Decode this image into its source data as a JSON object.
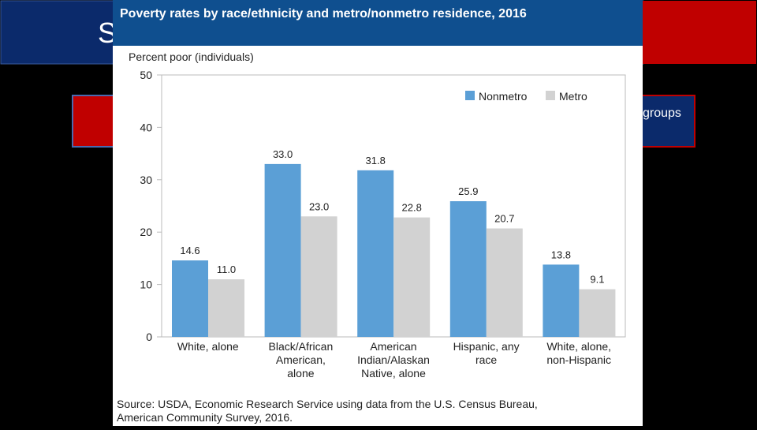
{
  "slide": {
    "title_fragment": "S",
    "box_fragment": "groups"
  },
  "chart_data": {
    "type": "bar",
    "title": "Poverty rates by race/ethnicity and metro/nonmetro residence, 2016",
    "y_label": "Percent poor (individuals)",
    "source": "Source: USDA, Economic Research Service using data from the U.S. Census Bureau, American Community Survey, 2016.",
    "categories": [
      "White, alone",
      "Black/African American, alone",
      "American Indian/Alaskan Native, alone",
      "Hispanic, any race",
      "White, alone, non-Hispanic"
    ],
    "series": [
      {
        "name": "Nonmetro",
        "color": "#5b9fd6",
        "values": [
          14.6,
          33,
          31.8,
          25.9,
          13.8
        ],
        "value_labels": [
          "14.6",
          "33.0",
          "31.8",
          "25.9",
          "13.8"
        ]
      },
      {
        "name": "Metro",
        "color": "#d2d2d2",
        "values": [
          11,
          23,
          22.8,
          20.7,
          9.1
        ],
        "value_labels": [
          "11.0",
          "23.0",
          "22.8",
          "20.7",
          "9.1"
        ]
      }
    ],
    "ylim": [
      0,
      50
    ],
    "yticks": [
      0,
      10,
      20,
      30,
      40,
      50
    ],
    "grid": false,
    "legend": "top-right"
  }
}
